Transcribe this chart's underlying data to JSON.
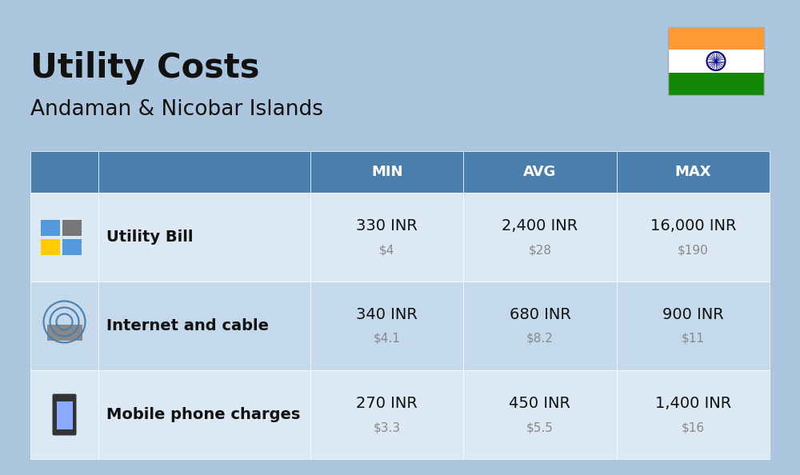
{
  "title": "Utility Costs",
  "subtitle": "Andaman & Nicobar Islands",
  "background_color": "#adc6e0",
  "header_color": "#4a7fad",
  "row1_color": "#dce9f5",
  "row2_color": "#c5d9ec",
  "row3_color": "#dce9f5",
  "header_text_color": "#ffffff",
  "col_headers": [
    "MIN",
    "AVG",
    "MAX"
  ],
  "rows": [
    {
      "label": "Utility Bill",
      "min_inr": "330 INR",
      "min_usd": "$4",
      "avg_inr": "2,400 INR",
      "avg_usd": "$28",
      "max_inr": "16,000 INR",
      "max_usd": "$190"
    },
    {
      "label": "Internet and cable",
      "min_inr": "340 INR",
      "min_usd": "$4.1",
      "avg_inr": "680 INR",
      "avg_usd": "$8.2",
      "max_inr": "900 INR",
      "max_usd": "$11"
    },
    {
      "label": "Mobile phone charges",
      "min_inr": "270 INR",
      "min_usd": "$3.3",
      "avg_inr": "450 INR",
      "avg_usd": "$5.5",
      "max_inr": "1,400 INR",
      "max_usd": "$16"
    }
  ],
  "title_fontsize": 30,
  "subtitle_fontsize": 19,
  "header_fontsize": 13,
  "label_fontsize": 14,
  "value_fontsize": 14,
  "usd_fontsize": 11,
  "india_flag_colors": [
    "#FF9933",
    "#FFFFFF",
    "#138808"
  ],
  "dark_text": "#111111",
  "usd_color": "#888888",
  "fig_width": 10.0,
  "fig_height": 5.94
}
